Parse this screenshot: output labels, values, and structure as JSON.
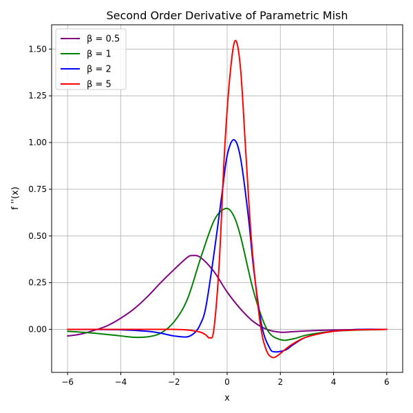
{
  "chart_data": {
    "type": "line",
    "title": "Second Order Derivative of Parametric Mish",
    "xlabel": "x",
    "ylabel": "f ''(x)",
    "xlim": [
      -6.6,
      6.6
    ],
    "ylim": [
      -0.23,
      1.63
    ],
    "xticks": [
      -6,
      -4,
      -2,
      0,
      2,
      4,
      6
    ],
    "xtick_labels": [
      "−6",
      "−4",
      "−2",
      "0",
      "2",
      "4",
      "6"
    ],
    "yticks": [
      0.0,
      0.25,
      0.5,
      0.75,
      1.0,
      1.25,
      1.5
    ],
    "ytick_labels": [
      "0.00",
      "0.25",
      "0.50",
      "0.75",
      "1.00",
      "1.25",
      "1.50"
    ],
    "grid": true,
    "legend_position": "upper-left",
    "series": [
      {
        "name": "β = 0.5",
        "color": "#800080",
        "x": [
          -6,
          -5.5,
          -5,
          -4.5,
          -4,
          -3.5,
          -3,
          -2.5,
          -2,
          -1.5,
          -1.3,
          -1,
          -0.5,
          0,
          0.5,
          1,
          1.5,
          2,
          2.5,
          3,
          4,
          5,
          6
        ],
        "y": [
          -0.035,
          -0.025,
          -0.005,
          0.02,
          0.06,
          0.11,
          0.175,
          0.25,
          0.32,
          0.385,
          0.395,
          0.385,
          0.31,
          0.2,
          0.11,
          0.04,
          0.0,
          -0.015,
          -0.012,
          -0.008,
          -0.003,
          -0.001,
          0.0
        ]
      },
      {
        "name": "β = 1",
        "color": "#008000",
        "x": [
          -6,
          -5,
          -4,
          -3.5,
          -3,
          -2.5,
          -2,
          -1.5,
          -1,
          -0.5,
          -0.1,
          0.2,
          0.5,
          1,
          1.5,
          2,
          2.5,
          3,
          4,
          5,
          6
        ],
        "y": [
          -0.01,
          -0.02,
          -0.035,
          -0.042,
          -0.04,
          -0.02,
          0.04,
          0.16,
          0.38,
          0.58,
          0.645,
          0.62,
          0.5,
          0.2,
          0.0,
          -0.055,
          -0.05,
          -0.03,
          -0.01,
          -0.003,
          0.0
        ],
        "color_key": "green"
      },
      {
        "name": "β = 2",
        "color": "#0000ff",
        "x": [
          -6,
          -4,
          -3,
          -2.5,
          -2,
          -1.5,
          -1.2,
          -1,
          -0.8,
          -0.5,
          -0.2,
          0,
          0.25,
          0.5,
          0.8,
          1,
          1.3,
          1.6,
          1.8,
          2.2,
          2.5,
          3,
          4,
          5,
          6
        ],
        "y": [
          0.0,
          -0.002,
          -0.01,
          -0.02,
          -0.035,
          -0.04,
          -0.015,
          0.03,
          0.12,
          0.4,
          0.72,
          0.93,
          1.015,
          0.92,
          0.6,
          0.32,
          0.02,
          -0.1,
          -0.12,
          -0.11,
          -0.08,
          -0.04,
          -0.01,
          0.0,
          0.0
        ]
      },
      {
        "name": "β = 5",
        "color": "#ff0000",
        "x": [
          -6,
          -3,
          -2,
          -1.5,
          -1,
          -0.8,
          -0.65,
          -0.5,
          -0.3,
          -0.1,
          0.1,
          0.3,
          0.5,
          0.7,
          0.9,
          1.1,
          1.3,
          1.5,
          1.7,
          1.9,
          2.2,
          2.5,
          3,
          4,
          5,
          6
        ],
        "y": [
          0.0,
          0.0,
          0.0,
          -0.003,
          -0.015,
          -0.03,
          -0.045,
          0.0,
          0.35,
          0.95,
          1.35,
          1.545,
          1.4,
          0.95,
          0.5,
          0.2,
          -0.02,
          -0.12,
          -0.15,
          -0.14,
          -0.105,
          -0.075,
          -0.04,
          -0.01,
          -0.002,
          0.0
        ]
      }
    ]
  }
}
